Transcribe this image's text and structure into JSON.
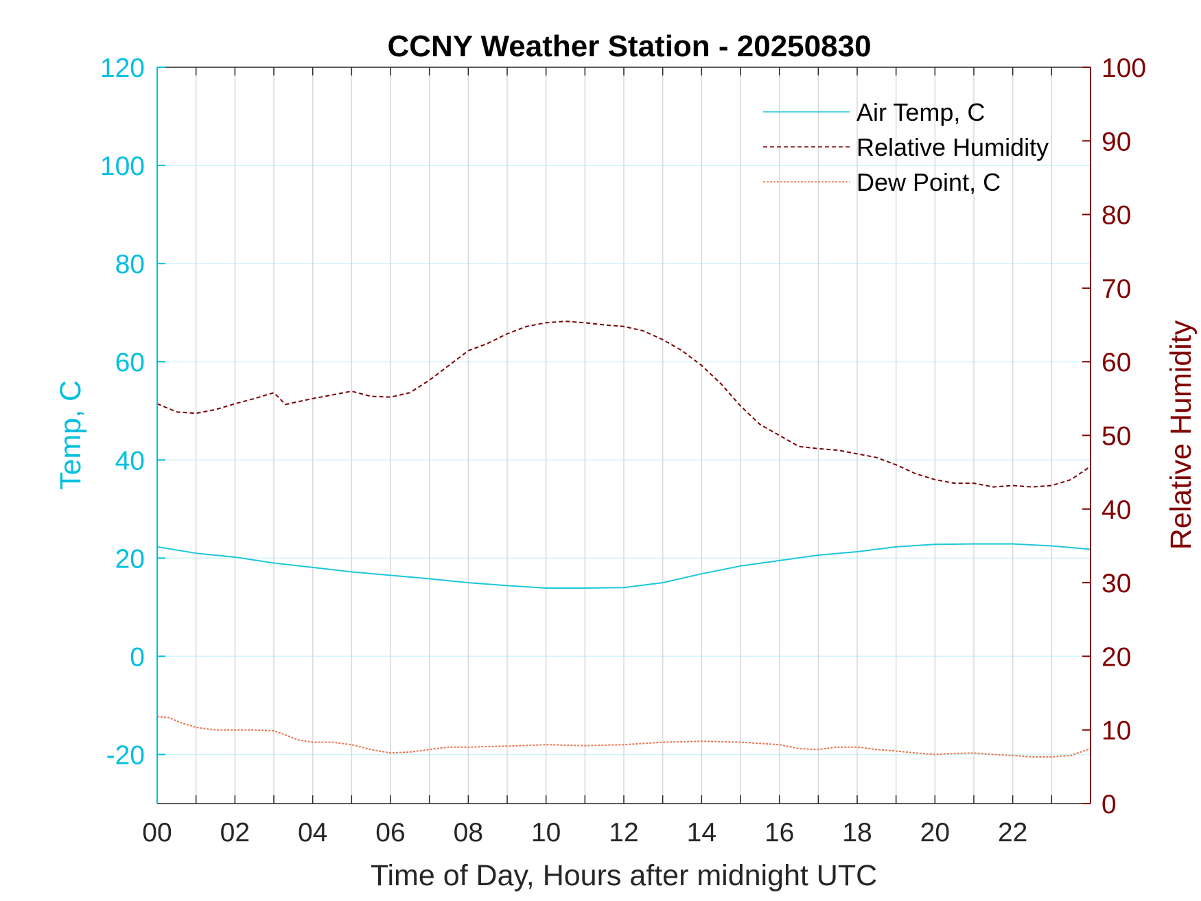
{
  "chart_data": {
    "type": "line",
    "title": "CCNY Weather Station - 20250830",
    "xlabel": "Time of Day, Hours after midnight UTC",
    "ylabel_left": "Temp, C",
    "ylabel_right": "Relative Humidity",
    "xlim": [
      0,
      24
    ],
    "ylim_left": [
      -30,
      120
    ],
    "ylim_right": [
      0,
      100
    ],
    "x_ticks": [
      "00",
      "02",
      "04",
      "06",
      "08",
      "10",
      "12",
      "14",
      "16",
      "18",
      "20",
      "22"
    ],
    "x_tick_values": [
      0,
      2,
      4,
      6,
      8,
      10,
      12,
      14,
      16,
      18,
      20,
      22
    ],
    "y_ticks_left": [
      120,
      100,
      80,
      60,
      40,
      20,
      0,
      -20
    ],
    "y_ticks_right": [
      100,
      90,
      80,
      70,
      60,
      50,
      40,
      30,
      20,
      10,
      0
    ],
    "grid": true,
    "legend_position": "top-right",
    "colors": {
      "left_axis": "#00BFE0",
      "right_axis": "#800000",
      "air_temp": "#1CC7DC",
      "humidity": "#7A0000",
      "dew_point": "#E8734A",
      "grid": "#D9D9D9"
    },
    "series": [
      {
        "name": "Air Temp, C",
        "axis": "left",
        "style": "solid",
        "x": [
          0,
          1,
          2,
          3,
          4,
          5,
          6,
          7,
          8,
          9,
          10,
          11,
          12,
          13,
          14,
          15,
          16,
          17,
          18,
          19,
          20,
          21,
          22,
          23,
          24
        ],
        "y": [
          22.3,
          21.0,
          20.2,
          19.0,
          18.1,
          17.2,
          16.5,
          15.8,
          15.0,
          14.4,
          13.9,
          13.9,
          14.0,
          15.0,
          16.8,
          18.4,
          19.5,
          20.6,
          21.3,
          22.3,
          22.8,
          22.9,
          22.9,
          22.5,
          21.8
        ]
      },
      {
        "name": "Relative Humidity",
        "axis": "right",
        "style": "dashed",
        "x": [
          0,
          0.5,
          1,
          1.5,
          2,
          2.5,
          3,
          3.3,
          4,
          4.5,
          5,
          5.5,
          6,
          6.5,
          7,
          7.5,
          8,
          8.5,
          9,
          9.5,
          10,
          10.5,
          11,
          11.5,
          12,
          12.5,
          13,
          13.5,
          14,
          14.5,
          15,
          15.5,
          16,
          16.5,
          17,
          17.5,
          18,
          18.5,
          19,
          19.5,
          20,
          20.5,
          21,
          21.5,
          22,
          22.5,
          23,
          23.5,
          24
        ],
        "y": [
          54.3,
          53.2,
          53.0,
          53.5,
          54.3,
          55.0,
          55.8,
          54.2,
          55.0,
          55.5,
          56.0,
          55.3,
          55.2,
          55.8,
          57.5,
          59.5,
          61.5,
          62.5,
          63.8,
          64.8,
          65.3,
          65.5,
          65.3,
          65.0,
          64.8,
          64.2,
          63.0,
          61.5,
          59.5,
          57.0,
          54.0,
          51.5,
          50.0,
          48.5,
          48.2,
          48.0,
          47.5,
          47.0,
          46.0,
          44.8,
          44.0,
          43.5,
          43.5,
          43.0,
          43.2,
          43.0,
          43.2,
          44.0,
          45.8
        ]
      },
      {
        "name": "Dew Point, C",
        "axis": "left",
        "style": "dotted",
        "x": [
          0,
          0.3,
          0.6,
          1,
          1.5,
          2,
          2.5,
          3,
          3.3,
          3.6,
          4,
          4.5,
          5,
          5.5,
          6,
          6.5,
          7,
          7.5,
          8,
          9,
          10,
          11,
          12,
          13,
          14,
          15,
          16,
          16.5,
          17,
          17.5,
          18,
          18.5,
          19,
          19.5,
          20,
          20.5,
          21,
          21.5,
          22,
          22.5,
          23,
          23.5,
          24
        ],
        "y": [
          -12.3,
          -12.5,
          -13.5,
          -14.5,
          -15.0,
          -15.0,
          -15.0,
          -15.2,
          -16.0,
          -17.0,
          -17.5,
          -17.5,
          -18.0,
          -19.0,
          -19.7,
          -19.5,
          -19.0,
          -18.5,
          -18.5,
          -18.3,
          -18.0,
          -18.2,
          -18.0,
          -17.5,
          -17.3,
          -17.5,
          -18.0,
          -18.8,
          -19.0,
          -18.5,
          -18.5,
          -19.0,
          -19.3,
          -19.7,
          -20.0,
          -19.8,
          -19.7,
          -20.0,
          -20.2,
          -20.5,
          -20.5,
          -20.2,
          -18.8
        ]
      }
    ]
  }
}
